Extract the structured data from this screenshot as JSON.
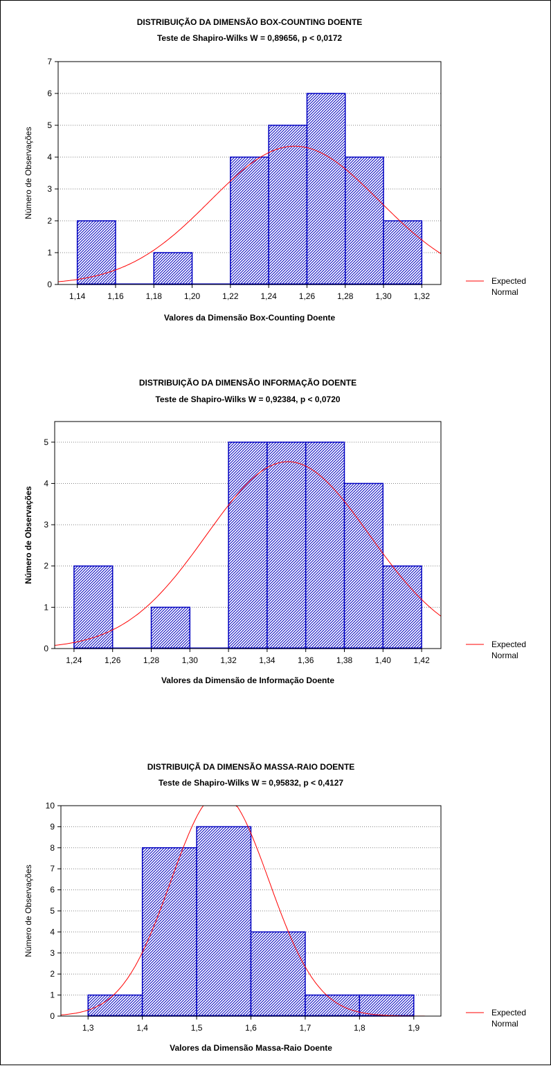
{
  "chart_data": [
    {
      "type": "bar",
      "title": "DISTRIBUIÇÃO DA DIMENSÃO BOX-COUNTING DOENTE",
      "subtitle": "Teste de Shapiro-Wilks W = 0,89656,  p < 0,0172",
      "xlabel": "Valores da Dimensão  Box-Counting Doente",
      "ylabel": "Número de Observações",
      "ylabel_bold": false,
      "xticks": [
        1.14,
        1.16,
        1.18,
        1.2,
        1.22,
        1.24,
        1.26,
        1.28,
        1.3,
        1.32
      ],
      "xtick_labels": [
        "1,14",
        "1,16",
        "1,18",
        "1,20",
        "1,22",
        "1,24",
        "1,26",
        "1,28",
        "1,30",
        "1,32"
      ],
      "xlim": [
        1.13,
        1.33
      ],
      "ylim": [
        0,
        7
      ],
      "yticks": [
        0,
        1,
        2,
        3,
        4,
        5,
        6,
        7
      ],
      "bins": [
        [
          1.14,
          1.16
        ],
        [
          1.16,
          1.18
        ],
        [
          1.18,
          1.2
        ],
        [
          1.2,
          1.22
        ],
        [
          1.22,
          1.24
        ],
        [
          1.24,
          1.26
        ],
        [
          1.26,
          1.28
        ],
        [
          1.28,
          1.3
        ],
        [
          1.3,
          1.32
        ]
      ],
      "values": [
        2,
        0,
        1,
        0,
        4,
        5,
        6,
        4,
        2
      ],
      "normal_curve": {
        "mean": 1.2536,
        "sd": 0.0441,
        "n": 24,
        "bin_width": 0.02
      },
      "legend": [
        "Expected",
        "Normal"
      ],
      "legend_position": "right",
      "grid": true,
      "bar_color": "#0000c0",
      "curve_color": "#ff0000"
    },
    {
      "type": "bar",
      "title": "DISTRIBUIÇÃO DA DIMENSÃO INFORMAÇÃO DOENTE",
      "subtitle": "Teste de Shapiro-Wilks  W = 0,92384,  p < 0,0720",
      "xlabel": "Valores da Dimensão de Informação Doente",
      "ylabel": "Número de Observações",
      "ylabel_bold": true,
      "xticks": [
        1.24,
        1.26,
        1.28,
        1.3,
        1.32,
        1.34,
        1.36,
        1.38,
        1.4,
        1.42
      ],
      "xtick_labels": [
        "1,24",
        "1,26",
        "1,28",
        "1,30",
        "1,32",
        "1,34",
        "1,36",
        "1,38",
        "1,40",
        "1,42"
      ],
      "xlim": [
        1.23,
        1.43
      ],
      "ylim": [
        0,
        5.5
      ],
      "yticks": [
        0,
        1,
        2,
        3,
        4,
        5
      ],
      "bins": [
        [
          1.24,
          1.26
        ],
        [
          1.26,
          1.28
        ],
        [
          1.28,
          1.3
        ],
        [
          1.3,
          1.32
        ],
        [
          1.32,
          1.34
        ],
        [
          1.34,
          1.36
        ],
        [
          1.36,
          1.38
        ],
        [
          1.38,
          1.4
        ],
        [
          1.4,
          1.42
        ]
      ],
      "values": [
        2,
        0,
        1,
        0,
        5,
        5,
        5,
        4,
        2
      ],
      "normal_curve": {
        "mean": 1.3508,
        "sd": 0.0423,
        "n": 24,
        "bin_width": 0.02
      },
      "legend": [
        "Expected",
        "Normal"
      ],
      "legend_position": "right",
      "grid": true,
      "bar_color": "#0000c0",
      "curve_color": "#ff0000"
    },
    {
      "type": "bar",
      "title": "DISTRIBUIÇÃ DA DIMENSÃO MASSA-RAIO DOENTE",
      "subtitle": "Teste de Shapiro-Wilks  W = 0,95832,  p < 0,4127",
      "xlabel": "Valores da Dimensão Massa-Raio Doente",
      "ylabel": "Número de Observações",
      "ylabel_bold": false,
      "xticks": [
        1.3,
        1.4,
        1.5,
        1.6,
        1.7,
        1.8,
        1.9
      ],
      "xtick_labels": [
        "1,3",
        "1,4",
        "1,5",
        "1,6",
        "1,7",
        "1,8",
        "1,9"
      ],
      "xlim": [
        1.25,
        1.95
      ],
      "ylim": [
        0,
        10
      ],
      "yticks": [
        0,
        1,
        2,
        3,
        4,
        5,
        6,
        7,
        8,
        9,
        10
      ],
      "bins": [
        [
          1.3,
          1.4
        ],
        [
          1.4,
          1.5
        ],
        [
          1.5,
          1.6
        ],
        [
          1.6,
          1.7
        ],
        [
          1.7,
          1.8
        ],
        [
          1.8,
          1.9
        ]
      ],
      "values": [
        1,
        8,
        9,
        4,
        1,
        1
      ],
      "normal_curve": {
        "mean": 1.543,
        "sd": 0.0903,
        "n": 24,
        "bin_width": 0.1
      },
      "legend": [
        "Expected",
        "Normal"
      ],
      "legend_position": "right",
      "grid": true,
      "bar_color": "#0000c0",
      "curve_color": "#ff0000"
    }
  ]
}
